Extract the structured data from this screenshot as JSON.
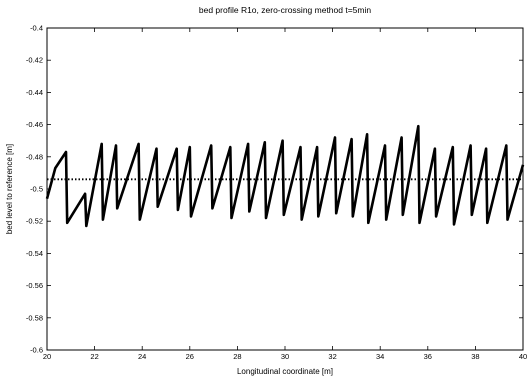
{
  "chart_data": {
    "type": "line",
    "title": "bed profile R1o, zero-crossing method t=5min",
    "xlabel": "Longitudinal coordinate [m]",
    "ylabel": "bed level to reference [m]",
    "xlim": [
      20,
      40
    ],
    "ylim": [
      -0.6,
      -0.4
    ],
    "xticks": [
      20,
      22,
      24,
      26,
      28,
      30,
      32,
      34,
      36,
      38,
      40
    ],
    "yticks": [
      -0.6,
      -0.58,
      -0.56,
      -0.54,
      -0.52,
      -0.5,
      -0.48,
      -0.46,
      -0.44,
      -0.42,
      -0.4
    ],
    "ytick_labels": [
      "-0.6",
      "-0.58",
      "-0.56",
      "-0.54",
      "-0.52",
      "-0.5",
      "-0.48",
      "-0.46",
      "-0.44",
      "-0.42",
      "-0.4"
    ],
    "grid": false,
    "series": [
      {
        "style": "solid-thick",
        "color": "#000000",
        "x": [
          20.0,
          20.35,
          20.8,
          20.85,
          21.6,
          21.65,
          22.3,
          22.35,
          22.9,
          22.95,
          23.85,
          23.9,
          24.6,
          24.65,
          25.45,
          25.5,
          26.0,
          26.05,
          26.9,
          26.95,
          27.7,
          27.75,
          28.45,
          28.5,
          29.15,
          29.2,
          29.9,
          29.95,
          30.65,
          30.7,
          31.35,
          31.4,
          32.1,
          32.15,
          32.8,
          32.85,
          33.45,
          33.5,
          34.2,
          34.25,
          34.9,
          34.95,
          35.6,
          35.65,
          36.3,
          36.35,
          37.05,
          37.1,
          37.8,
          37.85,
          38.45,
          38.5,
          39.3,
          39.35,
          40.0
        ],
        "y": [
          -0.506,
          -0.487,
          -0.477,
          -0.521,
          -0.503,
          -0.523,
          -0.472,
          -0.519,
          -0.473,
          -0.512,
          -0.472,
          -0.519,
          -0.475,
          -0.511,
          -0.475,
          -0.513,
          -0.474,
          -0.517,
          -0.473,
          -0.512,
          -0.474,
          -0.518,
          -0.472,
          -0.514,
          -0.471,
          -0.518,
          -0.47,
          -0.516,
          -0.474,
          -0.519,
          -0.474,
          -0.517,
          -0.468,
          -0.515,
          -0.469,
          -0.517,
          -0.466,
          -0.521,
          -0.473,
          -0.519,
          -0.468,
          -0.516,
          -0.461,
          -0.521,
          -0.475,
          -0.517,
          -0.474,
          -0.522,
          -0.473,
          -0.516,
          -0.475,
          -0.521,
          -0.473,
          -0.519,
          -0.485
        ]
      },
      {
        "style": "dotted",
        "color": "#000000",
        "x": [
          20,
          40
        ],
        "y": [
          -0.494,
          -0.494
        ]
      }
    ]
  }
}
